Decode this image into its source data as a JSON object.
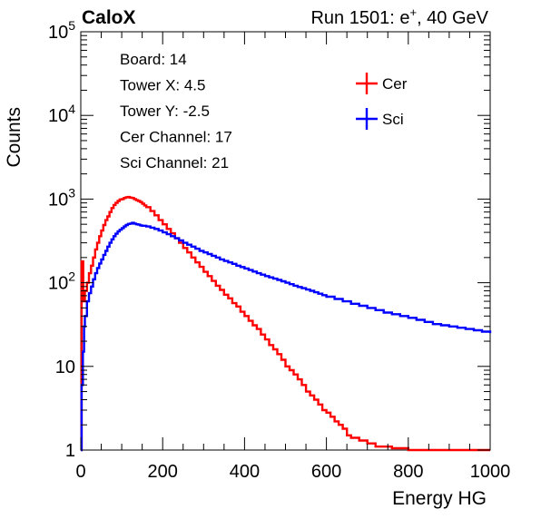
{
  "chart_data": {
    "type": "histogram",
    "title_left": "CaloX",
    "title_right_prefix": "Run 1501: e",
    "title_right_sup": "+",
    "title_right_suffix": ", 40 GeV",
    "xlabel": "Energy HG",
    "ylabel": "Counts",
    "xlim": [
      0,
      1000
    ],
    "ylim": [
      1,
      100000
    ],
    "yscale": "log",
    "grid": false,
    "legend_position": "top-right",
    "x_ticks": [
      {
        "value": 0,
        "label": "0"
      },
      {
        "value": 200,
        "label": "200"
      },
      {
        "value": 400,
        "label": "400"
      },
      {
        "value": 600,
        "label": "600"
      },
      {
        "value": 800,
        "label": "800"
      },
      {
        "value": 1000,
        "label": "1000"
      }
    ],
    "y_ticks": [
      {
        "value": 1,
        "base": "1",
        "exp": ""
      },
      {
        "value": 10,
        "base": "10",
        "exp": ""
      },
      {
        "value": 100,
        "base": "10",
        "exp": "2"
      },
      {
        "value": 1000,
        "base": "10",
        "exp": "3"
      },
      {
        "value": 10000,
        "base": "10",
        "exp": "4"
      },
      {
        "value": 100000,
        "base": "10",
        "exp": "5"
      }
    ],
    "info_lines": [
      "Board: 14",
      "Tower X: 4.5",
      "Tower Y: -2.5",
      "Cer Channel: 17",
      "Sci Channel: 21"
    ],
    "series": [
      {
        "name": "Cer",
        "color": "#ff0000",
        "points": [
          [
            0,
            1
          ],
          [
            2,
            180
          ],
          [
            6,
            60
          ],
          [
            10,
            80
          ],
          [
            15,
            100
          ],
          [
            20,
            130
          ],
          [
            25,
            160
          ],
          [
            30,
            200
          ],
          [
            35,
            250
          ],
          [
            40,
            300
          ],
          [
            45,
            360
          ],
          [
            50,
            420
          ],
          [
            55,
            490
          ],
          [
            60,
            560
          ],
          [
            65,
            620
          ],
          [
            70,
            700
          ],
          [
            75,
            780
          ],
          [
            80,
            850
          ],
          [
            85,
            900
          ],
          [
            90,
            950
          ],
          [
            95,
            990
          ],
          [
            100,
            1000
          ],
          [
            105,
            1030
          ],
          [
            110,
            1050
          ],
          [
            115,
            1060
          ],
          [
            120,
            1040
          ],
          [
            125,
            1030
          ],
          [
            130,
            1000
          ],
          [
            135,
            970
          ],
          [
            140,
            950
          ],
          [
            145,
            920
          ],
          [
            150,
            880
          ],
          [
            155,
            840
          ],
          [
            160,
            800
          ],
          [
            170,
            720
          ],
          [
            180,
            640
          ],
          [
            190,
            560
          ],
          [
            200,
            500
          ],
          [
            210,
            440
          ],
          [
            220,
            390
          ],
          [
            230,
            340
          ],
          [
            240,
            300
          ],
          [
            250,
            260
          ],
          [
            260,
            230
          ],
          [
            270,
            200
          ],
          [
            280,
            175
          ],
          [
            290,
            155
          ],
          [
            300,
            135
          ],
          [
            310,
            120
          ],
          [
            320,
            105
          ],
          [
            330,
            92
          ],
          [
            340,
            82
          ],
          [
            350,
            72
          ],
          [
            360,
            65
          ],
          [
            370,
            57
          ],
          [
            380,
            52
          ],
          [
            390,
            45
          ],
          [
            400,
            40
          ],
          [
            410,
            35
          ],
          [
            420,
            31
          ],
          [
            430,
            28
          ],
          [
            440,
            24
          ],
          [
            450,
            21
          ],
          [
            460,
            18
          ],
          [
            470,
            16
          ],
          [
            480,
            14
          ],
          [
            490,
            12
          ],
          [
            500,
            10
          ],
          [
            510,
            9
          ],
          [
            520,
            8
          ],
          [
            530,
            7
          ],
          [
            540,
            6
          ],
          [
            550,
            5
          ],
          [
            560,
            4.5
          ],
          [
            570,
            4
          ],
          [
            580,
            3.5
          ],
          [
            590,
            3
          ],
          [
            600,
            2.8
          ],
          [
            610,
            2.5
          ],
          [
            620,
            2.2
          ],
          [
            630,
            2
          ],
          [
            640,
            1.8
          ],
          [
            650,
            1.5
          ],
          [
            660,
            1.4
          ],
          [
            680,
            1.3
          ],
          [
            700,
            1.2
          ],
          [
            720,
            1.1
          ],
          [
            740,
            1.1
          ],
          [
            760,
            1.05
          ],
          [
            780,
            1.05
          ],
          [
            800,
            1
          ],
          [
            850,
            1
          ],
          [
            900,
            1
          ],
          [
            950,
            1
          ],
          [
            1000,
            1
          ]
        ]
      },
      {
        "name": "Sci",
        "color": "#0000ff",
        "points": [
          [
            0,
            1
          ],
          [
            2,
            6
          ],
          [
            5,
            15
          ],
          [
            8,
            30
          ],
          [
            10,
            40
          ],
          [
            15,
            60
          ],
          [
            20,
            75
          ],
          [
            25,
            90
          ],
          [
            30,
            110
          ],
          [
            35,
            130
          ],
          [
            40,
            150
          ],
          [
            45,
            170
          ],
          [
            50,
            190
          ],
          [
            55,
            215
          ],
          [
            60,
            240
          ],
          [
            65,
            270
          ],
          [
            70,
            300
          ],
          [
            75,
            330
          ],
          [
            80,
            360
          ],
          [
            85,
            385
          ],
          [
            90,
            410
          ],
          [
            95,
            430
          ],
          [
            100,
            450
          ],
          [
            105,
            470
          ],
          [
            110,
            490
          ],
          [
            115,
            505
          ],
          [
            120,
            510
          ],
          [
            125,
            520
          ],
          [
            130,
            510
          ],
          [
            135,
            500
          ],
          [
            140,
            495
          ],
          [
            145,
            485
          ],
          [
            150,
            480
          ],
          [
            160,
            470
          ],
          [
            170,
            455
          ],
          [
            180,
            440
          ],
          [
            190,
            420
          ],
          [
            200,
            400
          ],
          [
            210,
            380
          ],
          [
            220,
            360
          ],
          [
            230,
            340
          ],
          [
            240,
            320
          ],
          [
            250,
            300
          ],
          [
            260,
            285
          ],
          [
            270,
            270
          ],
          [
            280,
            255
          ],
          [
            290,
            240
          ],
          [
            300,
            230
          ],
          [
            310,
            220
          ],
          [
            320,
            210
          ],
          [
            330,
            200
          ],
          [
            340,
            190
          ],
          [
            350,
            182
          ],
          [
            360,
            175
          ],
          [
            370,
            168
          ],
          [
            380,
            160
          ],
          [
            390,
            154
          ],
          [
            400,
            148
          ],
          [
            410,
            142
          ],
          [
            420,
            136
          ],
          [
            430,
            130
          ],
          [
            440,
            125
          ],
          [
            450,
            120
          ],
          [
            460,
            116
          ],
          [
            470,
            112
          ],
          [
            480,
            108
          ],
          [
            490,
            104
          ],
          [
            500,
            100
          ],
          [
            510,
            96
          ],
          [
            520,
            92
          ],
          [
            530,
            89
          ],
          [
            540,
            86
          ],
          [
            550,
            83
          ],
          [
            560,
            80
          ],
          [
            570,
            77
          ],
          [
            580,
            74
          ],
          [
            590,
            71
          ],
          [
            600,
            68
          ],
          [
            620,
            64
          ],
          [
            640,
            60
          ],
          [
            660,
            56
          ],
          [
            680,
            53
          ],
          [
            700,
            50
          ],
          [
            720,
            47
          ],
          [
            740,
            44
          ],
          [
            760,
            42
          ],
          [
            780,
            40
          ],
          [
            800,
            38
          ],
          [
            820,
            36
          ],
          [
            840,
            34
          ],
          [
            860,
            32
          ],
          [
            880,
            31
          ],
          [
            900,
            30
          ],
          [
            920,
            29
          ],
          [
            940,
            28
          ],
          [
            960,
            27
          ],
          [
            980,
            26
          ],
          [
            1000,
            25
          ]
        ]
      }
    ]
  }
}
